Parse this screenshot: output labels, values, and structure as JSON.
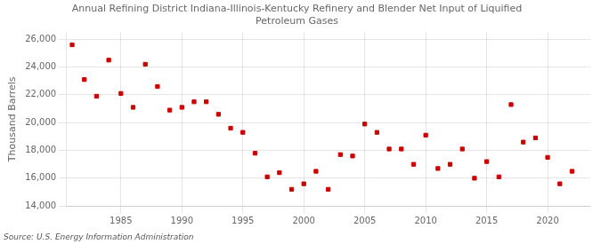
{
  "chart_data": {
    "type": "scatter",
    "title": "Annual Refining District Indiana-Illinois-Kentucky Refinery and Blender Net Input of Liquified\nPetroleum Gases",
    "y_label": "Thousand Barrels",
    "annotations": [
      "Source: U.S. Energy Information Administration"
    ],
    "x": [
      1981,
      1982,
      1983,
      1984,
      1985,
      1986,
      1987,
      1988,
      1989,
      1990,
      1991,
      1992,
      1993,
      1994,
      1995,
      1996,
      1997,
      1998,
      1999,
      2000,
      2001,
      2002,
      2003,
      2004,
      2005,
      2006,
      2007,
      2008,
      2009,
      2010,
      2011,
      2012,
      2013,
      2014,
      2015,
      2016,
      2017,
      2018,
      2019,
      2020,
      2021,
      2022
    ],
    "values": [
      25600,
      23100,
      21900,
      24500,
      22100,
      21100,
      24200,
      22600,
      20900,
      21100,
      21500,
      21500,
      20600,
      19600,
      19300,
      17800,
      16100,
      16400,
      15200,
      15600,
      16500,
      15200,
      17700,
      17600,
      19900,
      19300,
      18100,
      18100,
      17000,
      19100,
      16700,
      17000,
      18100,
      16000,
      17200,
      16100,
      21300,
      18600,
      18900,
      17500,
      15600,
      16500
    ],
    "color": "#cc0000",
    "marker": "square",
    "xlim": [
      1980.5,
      2023.5
    ],
    "xticks": [
      1985,
      1990,
      1995,
      2000,
      2005,
      2010,
      2015,
      2020
    ],
    "ylim": [
      14000,
      26500
    ],
    "yticks": [
      {
        "value": 14000,
        "label": "14,000"
      },
      {
        "value": 16000,
        "label": "16,000"
      },
      {
        "value": 18000,
        "label": "18,000"
      },
      {
        "value": 20000,
        "label": "20,000"
      },
      {
        "value": 22000,
        "label": "22,000"
      },
      {
        "value": 24000,
        "label": "24,000"
      },
      {
        "value": 26000,
        "label": "26,000"
      }
    ],
    "grid": true
  }
}
